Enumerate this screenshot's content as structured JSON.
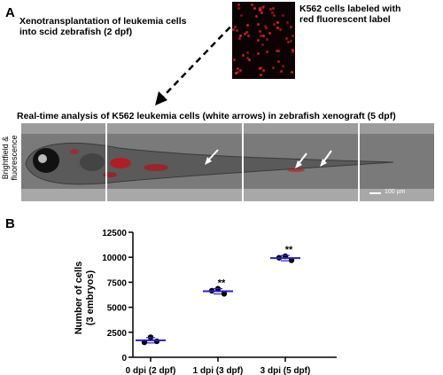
{
  "panel_a": {
    "letter": "A",
    "xeno_text_line1": "Xenotransplantation of leukemia cells",
    "xeno_text_line2": "into scid zebrafish (2 dpf)",
    "label_text_line1": "K562 cells labeled with",
    "label_text_line2": "red fluorescent label",
    "realtime_caption": "Real-time analysis of K562 leukemia cells (white arrows) in zebrafish xenograft (5 dpf)",
    "side_label_line1": "Brightfield &",
    "side_label_line2": "fluorescence",
    "scale_bar_label": "100 µm"
  },
  "panel_b": {
    "letter": "B"
  },
  "chart_data": {
    "type": "scatter",
    "title": "",
    "xlabel": "",
    "ylabel_line1": "Number of cells",
    "ylabel_line2": "(3 embryos)",
    "ylim": [
      0,
      12500
    ],
    "yticks": [
      "0",
      "2500",
      "5000",
      "7500",
      "10000",
      "12500"
    ],
    "categories": [
      "0 dpi (2 dpf)",
      "1 dpi (3 dpf)",
      "3 dpi (5 dpf)"
    ],
    "points": [
      [
        1500,
        2000,
        1600
      ],
      [
        6650,
        6850,
        6350
      ],
      [
        9950,
        10100,
        9700
      ]
    ],
    "means": [
      1700,
      6600,
      9917
    ],
    "significance": [
      "",
      "**",
      "**"
    ],
    "point_color": "#000000",
    "mean_color": "#2a1fd0"
  }
}
